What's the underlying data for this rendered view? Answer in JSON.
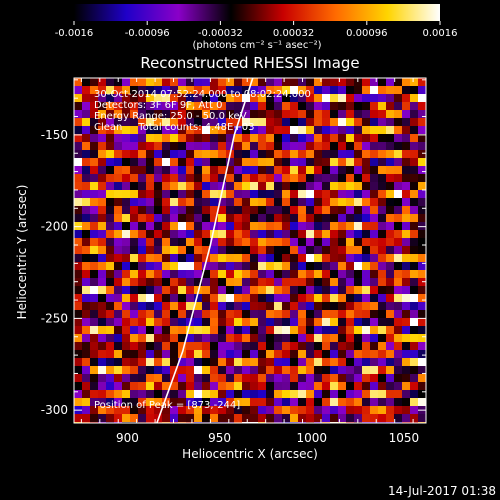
{
  "chart_data": {
    "type": "heatmap",
    "title": "Reconstructed RHESSI Image",
    "xlabel": "Heliocentric X (arcsec)",
    "ylabel": "Heliocentric Y (arcsec)",
    "xlim": [
      871,
      1062
    ],
    "ylim": [
      -307,
      -119
    ],
    "x_ticks": [
      900,
      950,
      1000,
      1050
    ],
    "y_ticks": [
      -150,
      -200,
      -250,
      -300
    ],
    "colorbar": {
      "min": -0.0016,
      "max": 0.0016,
      "ticks": [
        "-0.0016",
        "-0.00096",
        "-0.00032",
        "0.00032",
        "0.00096",
        "0.0016"
      ],
      "unit_label": "(photons cm⁻² s⁻¹ asec⁻²)",
      "colormap": [
        "#000000",
        "#1f00c8",
        "#8a00c8",
        "#000000",
        "#c80000",
        "#ff6a00",
        "#ffd400",
        "#ffffff"
      ]
    },
    "annotations": [
      "30-Oct-2014 07:52:24.000 to 08:02:24.000",
      "Detectors: 3F 6F 9F, Att 0",
      "Energy Range: 25.0 - 50.0 keV",
      "Clean     Total counts: 4.48E+03"
    ],
    "peak_label": "Position of Peak = [873,-244]",
    "peak_position": [
      873,
      -244
    ],
    "limb_curve": [
      [
        916,
        -307
      ],
      [
        930,
        -268
      ],
      [
        945,
        -210
      ],
      [
        958,
        -150
      ],
      [
        968,
        -119
      ]
    ],
    "timestamp": "14-Jul-2017 01:38"
  }
}
